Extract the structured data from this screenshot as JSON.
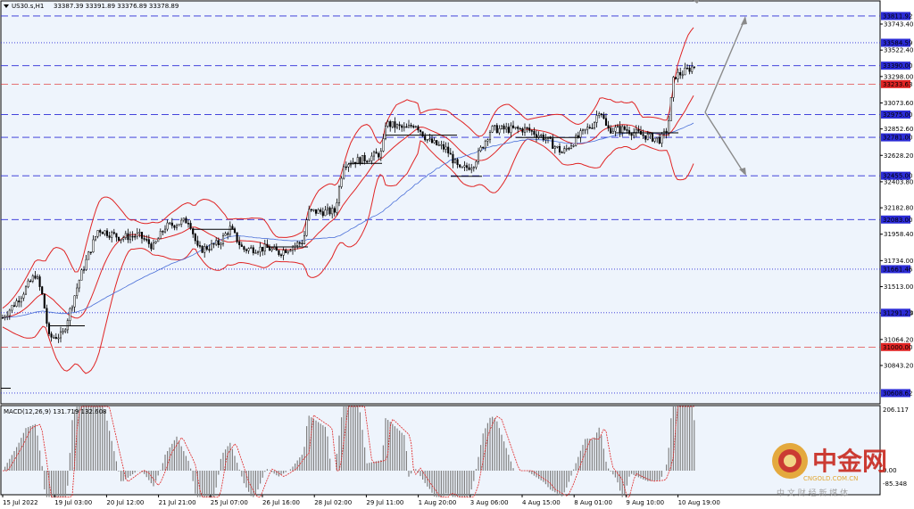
{
  "header": {
    "menu_icon": "triangle-down-icon",
    "symbol": "US30.s,H1",
    "ohlc": "33387.39 33391.89 33376.89 33378.89"
  },
  "price_axis": {
    "ticks": [
      "33743.40",
      "33522.40",
      "33298.00",
      "33073.60",
      "32852.60",
      "32628.20",
      "32403.80",
      "32182.80",
      "31958.40",
      "31734.00",
      "31513.00",
      "31288.60",
      "31064.20",
      "30843.20"
    ]
  },
  "level_tags": [
    {
      "price": "33811.92",
      "color": "#2b2bd6",
      "text_color": "#ffffff"
    },
    {
      "price": "33584.59",
      "color": "#2b2bd6",
      "text_color": "#ffffff"
    },
    {
      "price": "33390.00",
      "color": "#2b2bd6",
      "text_color": "#ffffff"
    },
    {
      "price": "33233.63",
      "color": "#e02424",
      "text_color": "#ffffff"
    },
    {
      "price": "32975.00",
      "color": "#2b2bd6",
      "text_color": "#ffffff"
    },
    {
      "price": "32781.00",
      "color": "#2b2bd6",
      "text_color": "#ffffff"
    },
    {
      "price": "32455.00",
      "color": "#2b2bd6",
      "text_color": "#ffffff"
    },
    {
      "price": "32083.00",
      "color": "#2b2bd6",
      "text_color": "#ffffff"
    },
    {
      "price": "31661.46",
      "color": "#2b2bd6",
      "text_color": "#ffffff"
    },
    {
      "price": "31291.23",
      "color": "#2b2bd6",
      "text_color": "#ffffff"
    },
    {
      "price": "31000.00",
      "color": "#e02424",
      "text_color": "#ffffff"
    },
    {
      "price": "30608.62",
      "color": "#2b2bd6",
      "text_color": "#ffffff"
    }
  ],
  "time_axis": {
    "labels": [
      "15 Jul 2022",
      "19 Jul 03:00",
      "20 Jul 12:00",
      "21 Jul 21:00",
      "25 Jul 07:00",
      "26 Jul 16:00",
      "28 Jul 02:00",
      "29 Jul 11:00",
      "1 Aug 20:00",
      "3 Aug 06:00",
      "4 Aug 15:00",
      "8 Aug 01:00",
      "9 Aug 10:00",
      "10 Aug 19:00"
    ]
  },
  "macd": {
    "title": "MACD(12,26,9) 131.719 132.608",
    "axis_top": "206.117",
    "axis_zero": "0.00",
    "axis_bottom": "-85.348"
  },
  "watermark": {
    "brand_cn": "中金网",
    "domain": "CNGOLD.COM.CN",
    "tagline": "中 文 财 经 新 媒 体"
  },
  "colors": {
    "background": "#eef4fc",
    "candle": "#000000",
    "bollinger": "#e02424",
    "moving_average": "#4a6fd8",
    "support_resistance": "#2b2bd6",
    "key_level": "#e02424",
    "macd_signal": "#e02424",
    "macd_hist": "#808080",
    "watermark_gold": "#d89a18",
    "watermark_red": "#c8281e"
  }
}
